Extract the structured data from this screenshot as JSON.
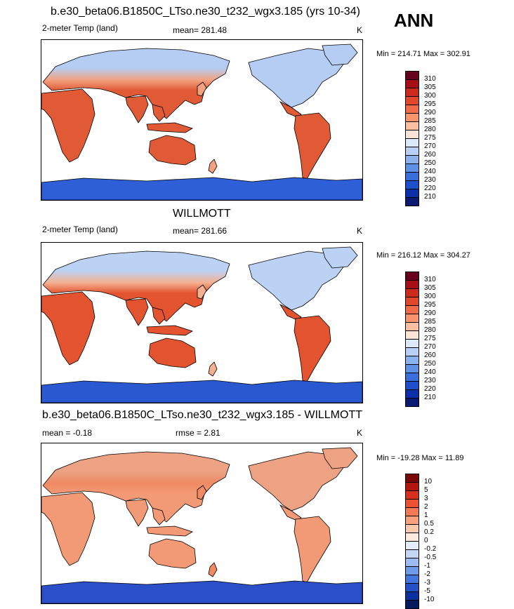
{
  "season": "ANN",
  "panels": [
    {
      "title": "b.e30_beta06.B1850C_LTso.ne30_t232_wgx3.185 (yrs 10-34)",
      "left": "2-meter Temp (land)",
      "center": "mean= 281.48",
      "units": "K",
      "minmax": "Min = 214.71 Max = 302.91",
      "cbar_labels": [
        "310",
        "305",
        "300",
        "295",
        "290",
        "285",
        "280",
        "275",
        "270",
        "260",
        "250",
        "240",
        "230",
        "220",
        "210"
      ],
      "cbar_colors": [
        "#67001f",
        "#a50f15",
        "#cb2a1d",
        "#e0472b",
        "#ef6b4a",
        "#f8956f",
        "#fcbfa2",
        "#fde4d6",
        "#dce9f8",
        "#b7d0f4",
        "#8cb2ee",
        "#5f91e6",
        "#3a6fdb",
        "#1f4fcb",
        "#0d2fa8",
        "#0a1a70"
      ]
    },
    {
      "title": "WILLMOTT",
      "left": "2-meter Temp (land)",
      "center": "mean= 281.66",
      "units": "K",
      "minmax": "Min = 216.12 Max = 304.27",
      "cbar_labels": [
        "310",
        "305",
        "300",
        "295",
        "290",
        "285",
        "280",
        "275",
        "270",
        "260",
        "250",
        "240",
        "230",
        "220",
        "210"
      ],
      "cbar_colors": [
        "#67001f",
        "#a50f15",
        "#cb2a1d",
        "#e0472b",
        "#ef6b4a",
        "#f8956f",
        "#fcbfa2",
        "#fde4d6",
        "#dce9f8",
        "#b7d0f4",
        "#8cb2ee",
        "#5f91e6",
        "#3a6fdb",
        "#1f4fcb",
        "#0d2fa8",
        "#0a1a70"
      ]
    },
    {
      "title": "b.e30_beta06.B1850C_LTso.ne30_t232_wgx3.185 - WILLMOTT",
      "left": "mean =  -0.18",
      "center": "rmse =   2.81",
      "units": "K",
      "minmax": "Min = -19.28 Max =  11.89",
      "cbar_labels": [
        "10",
        "5",
        "3",
        "2",
        "1",
        "0.5",
        "0.2",
        "0",
        "-0.2",
        "-0.5",
        "-1",
        "-2",
        "-3",
        "-5",
        "-10"
      ],
      "cbar_colors": [
        "#7a0a0a",
        "#b3160f",
        "#d6301e",
        "#ea5233",
        "#f47a55",
        "#f9a07c",
        "#fcc8ae",
        "#fde9dd",
        "#e3ecfa",
        "#c4d7f5",
        "#9dbdf0",
        "#6f9ae8",
        "#4576dd",
        "#2452c6",
        "#0e2f9e",
        "#061a5e"
      ]
    }
  ]
}
